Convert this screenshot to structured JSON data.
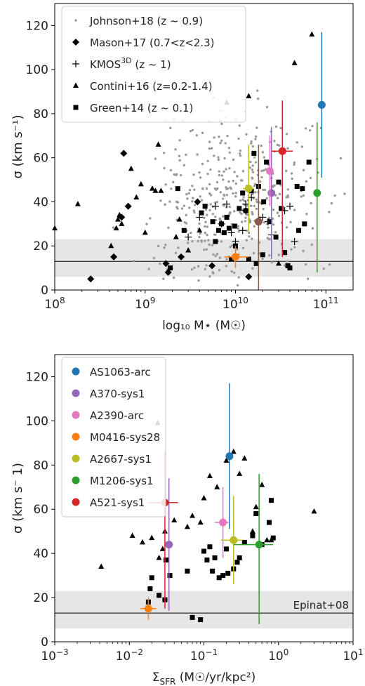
{
  "chart_data": [
    {
      "type": "scatter",
      "title": "",
      "xlabel": "log₁₀ M⋆ (M☉)",
      "ylabel": "σ (km s⁻¹)",
      "xscale": "log",
      "xlim": [
        100000000,
        200000000000
      ],
      "ylim": [
        0,
        130
      ],
      "xticks": [
        {
          "value": 100000000,
          "base": "10",
          "exp": "8"
        },
        {
          "value": 1000000000,
          "base": "10",
          "exp": "9"
        },
        {
          "value": 10000000000,
          "base": "10",
          "exp": "10"
        },
        {
          "value": 100000000000,
          "base": "10",
          "exp": "11"
        }
      ],
      "yticks": [
        0,
        20,
        40,
        60,
        80,
        100,
        120
      ],
      "band": {
        "y0": 6,
        "y1": 23,
        "color": "#e6e6e6"
      },
      "hline": 13,
      "legend_position": "top-left",
      "legend": [
        {
          "marker": "dot",
          "label": "Johnson+18 (z ~ 0.9)"
        },
        {
          "marker": "diamond",
          "label": "Mason+17 (0.7<z<2.3)"
        },
        {
          "marker": "plus",
          "label": "KMOS",
          "label_sup": "3D",
          "label_tail": " (z ~ 1)"
        },
        {
          "marker": "triangle",
          "label": "Contini+16 (z=0.2-1.4)"
        },
        {
          "marker": "square",
          "label": "Green+14 (z ~ 0.1)"
        }
      ],
      "series": [
        {
          "name": "Mason+17 (0.7<z<2.3)",
          "marker": "diamond",
          "points": [
            [
              250000000,
              5
            ],
            [
              450000000,
              15
            ],
            [
              550000000,
              33
            ],
            [
              580000000,
              62
            ],
            [
              650000000,
              38
            ],
            [
              1700000000,
              12
            ],
            [
              1800000000,
              8
            ],
            [
              2500000000,
              15
            ],
            [
              3800000000,
              40
            ],
            [
              5500000000,
              11
            ],
            [
              13000000000,
              36
            ],
            [
              14000000000,
              6
            ]
          ]
        },
        {
          "name": "KMOS3D (z ~ 1)",
          "marker": "plus",
          "points": [
            [
              3000000000,
              24
            ],
            [
              4000000000,
              33
            ],
            [
              6000000000,
              38
            ],
            [
              7000000000,
              30
            ],
            [
              8000000000,
              39
            ],
            [
              9000000000,
              26
            ],
            [
              10000000000,
              22
            ],
            [
              12000000000,
              27
            ],
            [
              13000000000,
              39
            ],
            [
              15000000000,
              42
            ],
            [
              20000000000,
              33
            ],
            [
              23000000000,
              31
            ],
            [
              25000000000,
              25
            ],
            [
              35000000000,
              36
            ],
            [
              40000000000,
              38
            ],
            [
              45000000000,
              22
            ]
          ]
        },
        {
          "name": "Contini+16 (z=0.2-1.4)",
          "marker": "triangle",
          "points": [
            [
              100000000,
              28
            ],
            [
              180000000,
              39
            ],
            [
              420000000,
              20
            ],
            [
              480000000,
              28
            ],
            [
              500000000,
              32
            ],
            [
              520000000,
              34
            ],
            [
              550000000,
              30
            ],
            [
              700000000,
              55
            ],
            [
              800000000,
              42
            ],
            [
              900000000,
              48
            ],
            [
              1000000000,
              26
            ],
            [
              1200000000,
              46
            ],
            [
              1300000000,
              45
            ],
            [
              1400000000,
              66
            ],
            [
              1500000000,
              45
            ],
            [
              2200000000,
              24
            ],
            [
              2400000000,
              32
            ],
            [
              3000000000,
              18
            ],
            [
              4000000000,
              27
            ],
            [
              8000000000,
              85
            ],
            [
              14000000000,
              88
            ],
            [
              30000000000,
              12
            ],
            [
              45000000000,
              103
            ],
            [
              70000000000,
              116
            ]
          ]
        },
        {
          "name": "Green+14 (z ~ 0.1)",
          "marker": "square",
          "points": [
            [
              1900000000,
              10
            ],
            [
              2300000000,
              46
            ],
            [
              2700000000,
              27
            ],
            [
              4200000000,
              35
            ],
            [
              4600000000,
              38
            ],
            [
              5600000000,
              31
            ],
            [
              6000000000,
              22
            ],
            [
              6500000000,
              27
            ],
            [
              7000000000,
              30
            ],
            [
              7500000000,
              26
            ],
            [
              8000000000,
              33
            ],
            [
              8500000000,
              28
            ],
            [
              9000000000,
              14
            ],
            [
              9800000000,
              29
            ],
            [
              10000000000,
              20
            ],
            [
              11000000000,
              37
            ],
            [
              12000000000,
              44
            ],
            [
              13000000000,
              36
            ],
            [
              14000000000,
              14
            ],
            [
              15000000000,
              45
            ],
            [
              16000000000,
              62
            ],
            [
              17000000000,
              12
            ],
            [
              18000000000,
              47
            ],
            [
              20000000000,
              16
            ],
            [
              20500000000,
              40
            ],
            [
              22000000000,
              58
            ],
            [
              24000000000,
              31
            ],
            [
              28000000000,
              24
            ],
            [
              30000000000,
              49
            ],
            [
              32000000000,
              37
            ],
            [
              35000000000,
              17
            ],
            [
              38000000000,
              11
            ],
            [
              40000000000,
              10
            ],
            [
              48000000000,
              47
            ],
            [
              50000000000,
              27
            ],
            [
              55000000000,
              46
            ],
            [
              58000000000,
              30
            ],
            [
              65000000000,
              58
            ]
          ]
        }
      ],
      "dot_cloud": {
        "series": "Johnson+18 (z ~ 0.9)",
        "count": 420,
        "seed": 7,
        "logx_mean": 10.0,
        "logx_sd": 0.45,
        "y_mean": 40,
        "y_sd": 20,
        "y_min": 2,
        "y_max": 128
      },
      "highlight": [
        {
          "name": "AS1063-arc",
          "color": "#1f77b4",
          "x": 90000000000,
          "y": 84,
          "xerr": [
            0,
            0
          ],
          "yerr": [
            33,
            33
          ]
        },
        {
          "name": "A370-sys1",
          "color": "#9467bd",
          "x": 25000000000,
          "y": 44,
          "xerr": [
            0,
            0
          ],
          "yerr": [
            30,
            30
          ]
        },
        {
          "name": "A2390-arc",
          "color": "#e377c2",
          "x": 24000000000,
          "y": 54,
          "xerr": [
            0,
            0
          ],
          "yerr": [
            16,
            16
          ]
        },
        {
          "name": "M0416-sys28",
          "color": "#ff7f0e",
          "x": 10000000000,
          "y": 15,
          "xerr": [
            2500000000,
            4000000000
          ],
          "yerr": [
            5,
            5
          ]
        },
        {
          "name": "A2667-sys1",
          "color": "#bcbd22",
          "x": 14000000000,
          "y": 46,
          "xerr": [
            2000000000,
            2000000000
          ],
          "yerr": [
            20,
            20
          ]
        },
        {
          "name": "M1206-sys1",
          "color": "#2ca02c",
          "x": 80000000000,
          "y": 44,
          "xerr": [
            4000000000,
            4000000000
          ],
          "yerr": [
            36,
            32
          ]
        },
        {
          "name": "A521-sys1",
          "color": "#d62728",
          "x": 33000000000,
          "y": 63,
          "xerr": [
            8000000000,
            10000000000
          ],
          "yerr": [
            48,
            23
          ]
        },
        {
          "name": "",
          "color": "#8c564b",
          "x": 18000000000,
          "y": 31,
          "xerr": [
            0,
            0
          ],
          "yerr": [
            31,
            35
          ]
        }
      ]
    },
    {
      "type": "scatter",
      "title": "",
      "xlabel": "Σ",
      "xlabel_sub": "SFR",
      "xlabel_tail": " (M☉/yr/kpc²)",
      "ylabel": "σ (km s⁻ 1)",
      "xscale": "log",
      "xlim": [
        0.001,
        10
      ],
      "ylim": [
        0,
        130
      ],
      "xticks": [
        {
          "value": 0.001,
          "base": "10",
          "exp": "−3"
        },
        {
          "value": 0.01,
          "base": "10",
          "exp": "−2"
        },
        {
          "value": 0.1,
          "base": "10",
          "exp": "−1"
        },
        {
          "value": 1,
          "base": "10",
          "exp": "0"
        },
        {
          "value": 10,
          "base": "10",
          "exp": "1"
        }
      ],
      "yticks": [
        0,
        20,
        40,
        60,
        80,
        100,
        120
      ],
      "band": {
        "y0": 6,
        "y1": 23,
        "color": "#e6e6e6"
      },
      "hline": 13,
      "hline_label": "Epinat+08",
      "legend_position": "top-left",
      "legend": [
        {
          "marker": "circle",
          "color": "#1f77b4",
          "label": "AS1063-arc"
        },
        {
          "marker": "circle",
          "color": "#9467bd",
          "label": "A370-sys1"
        },
        {
          "marker": "circle",
          "color": "#e377c2",
          "label": "A2390-arc"
        },
        {
          "marker": "circle",
          "color": "#ff7f0e",
          "label": "M0416-sys28"
        },
        {
          "marker": "circle",
          "color": "#bcbd22",
          "label": "A2667-sys1"
        },
        {
          "marker": "circle",
          "color": "#2ca02c",
          "label": "M1206-sys1"
        },
        {
          "marker": "circle",
          "color": "#d62728",
          "label": "A521-sys1"
        }
      ],
      "series": [
        {
          "name": "triangles",
          "marker": "triangle",
          "points": [
            [
              0.0042,
              34
            ],
            [
              0.011,
              48
            ],
            [
              0.015,
              45
            ],
            [
              0.02,
              47
            ],
            [
              0.024,
              99
            ],
            [
              0.025,
              38
            ],
            [
              0.028,
              42
            ],
            [
              0.03,
              50
            ],
            [
              0.04,
              55
            ],
            [
              0.06,
              52
            ],
            [
              0.07,
              57
            ],
            [
              0.09,
              54
            ],
            [
              0.1,
              65
            ],
            [
              0.12,
              75
            ],
            [
              0.15,
              70
            ],
            [
              0.2,
              82
            ],
            [
              0.25,
              86
            ],
            [
              0.3,
              76
            ],
            [
              0.35,
              83
            ],
            [
              0.45,
              50
            ],
            [
              0.5,
              61
            ],
            [
              0.6,
              71
            ],
            [
              0.7,
              46
            ],
            [
              0.8,
              46
            ],
            [
              3.0,
              59
            ]
          ]
        },
        {
          "name": "squares",
          "marker": "square",
          "points": [
            [
              0.018,
              18
            ],
            [
              0.019,
              24
            ],
            [
              0.02,
              29
            ],
            [
              0.025,
              21
            ],
            [
              0.03,
              19
            ],
            [
              0.031,
              37
            ],
            [
              0.035,
              30
            ],
            [
              0.06,
              32
            ],
            [
              0.07,
              11
            ],
            [
              0.09,
              10
            ],
            [
              0.1,
              41
            ],
            [
              0.11,
              37
            ],
            [
              0.12,
              43
            ],
            [
              0.13,
              32
            ],
            [
              0.14,
              38
            ],
            [
              0.16,
              29
            ],
            [
              0.18,
              30
            ],
            [
              0.2,
              42
            ],
            [
              0.21,
              31
            ],
            [
              0.25,
              33
            ],
            [
              0.28,
              36
            ],
            [
              0.3,
              38
            ],
            [
              0.35,
              45
            ],
            [
              0.45,
              48
            ],
            [
              0.5,
              58
            ],
            [
              0.6,
              44
            ],
            [
              0.75,
              54
            ],
            [
              0.8,
              64
            ],
            [
              0.85,
              47
            ]
          ]
        }
      ],
      "highlight": [
        {
          "name": "AS1063-arc",
          "color": "#1f77b4",
          "x": 0.22,
          "y": 84,
          "xerr": [
            0.005,
            0.005
          ],
          "yerr": [
            33,
            33
          ]
        },
        {
          "name": "A370-sys1",
          "color": "#9467bd",
          "x": 0.034,
          "y": 44,
          "xerr": [
            0.001,
            0.001
          ],
          "yerr": [
            30,
            30
          ]
        },
        {
          "name": "A2390-arc",
          "color": "#e377c2",
          "x": 0.18,
          "y": 54,
          "xerr": [
            0.04,
            0.04
          ],
          "yerr": [
            16,
            16
          ]
        },
        {
          "name": "M0416-sys28",
          "color": "#ff7f0e",
          "x": 0.018,
          "y": 15,
          "xerr": [
            0.004,
            0.005
          ],
          "yerr": [
            5,
            5
          ]
        },
        {
          "name": "A2667-sys1",
          "color": "#bcbd22",
          "x": 0.25,
          "y": 46,
          "xerr": [
            0.08,
            0.08
          ],
          "yerr": [
            20,
            20
          ]
        },
        {
          "name": "M1206-sys1",
          "color": "#2ca02c",
          "x": 0.55,
          "y": 44,
          "xerr": [
            0.3,
            0.3
          ],
          "yerr": [
            36,
            32
          ]
        },
        {
          "name": "A521-sys1",
          "color": "#d62728",
          "x": 0.03,
          "y": 63,
          "xerr": [
            0.012,
            0.015
          ],
          "yerr": [
            48,
            23
          ]
        }
      ]
    }
  ]
}
